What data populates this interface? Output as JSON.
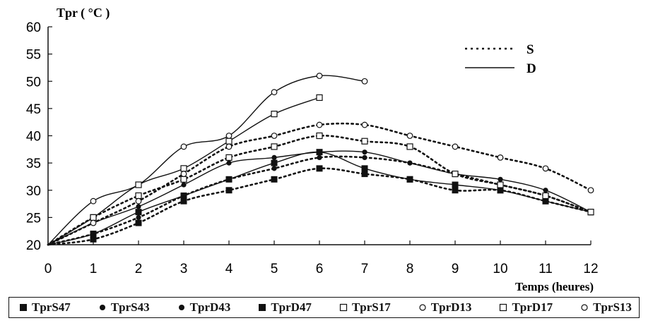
{
  "chart_data": {
    "type": "scatter",
    "ylabel": "Tpr ( °C )",
    "xlabel": "Temps (heures)",
    "xlim": [
      0,
      12
    ],
    "ylim": [
      20,
      60
    ],
    "xticks": [
      0,
      1,
      2,
      3,
      4,
      5,
      6,
      7,
      8,
      9,
      10,
      11,
      12
    ],
    "yticks": [
      20,
      25,
      30,
      35,
      40,
      45,
      50,
      55,
      60
    ],
    "grid": false,
    "line_legend": [
      {
        "label": "S",
        "style": "dotted"
      },
      {
        "label": "D",
        "style": "solid"
      }
    ],
    "series": [
      {
        "name": "TprS47",
        "marker": "square-filled",
        "line": "dotted",
        "points": [
          [
            0,
            20
          ],
          [
            1,
            21
          ],
          [
            2,
            24
          ],
          [
            3,
            28
          ],
          [
            4,
            30
          ],
          [
            5,
            32
          ],
          [
            6,
            34
          ],
          [
            7,
            33
          ],
          [
            8,
            32
          ],
          [
            9,
            30
          ],
          [
            10,
            30
          ],
          [
            11,
            28
          ],
          [
            12,
            26
          ]
        ]
      },
      {
        "name": "TprS43",
        "marker": "circle-filled",
        "line": "dotted",
        "points": [
          [
            0,
            20
          ],
          [
            1,
            22
          ],
          [
            2,
            25
          ],
          [
            3,
            29
          ],
          [
            4,
            32
          ],
          [
            5,
            34
          ],
          [
            6,
            36
          ],
          [
            7,
            36
          ],
          [
            8,
            35
          ],
          [
            9,
            33
          ],
          [
            10,
            31
          ],
          [
            11,
            29
          ],
          [
            12,
            26
          ]
        ]
      },
      {
        "name": "TprD43",
        "marker": "circle-filled",
        "line": "solid",
        "points": [
          [
            0,
            20
          ],
          [
            1,
            24
          ],
          [
            2,
            27
          ],
          [
            3,
            31
          ],
          [
            4,
            35
          ],
          [
            5,
            36
          ],
          [
            6,
            37
          ],
          [
            7,
            37
          ],
          [
            8,
            35
          ],
          [
            9,
            33
          ],
          [
            10,
            32
          ],
          [
            11,
            30
          ],
          [
            12,
            26
          ]
        ]
      },
      {
        "name": "TprD47",
        "marker": "square-filled",
        "line": "solid",
        "points": [
          [
            0,
            20
          ],
          [
            1,
            22
          ],
          [
            2,
            26
          ],
          [
            3,
            29
          ],
          [
            4,
            32
          ],
          [
            5,
            35
          ],
          [
            6,
            37
          ],
          [
            7,
            34
          ],
          [
            8,
            32
          ],
          [
            9,
            31
          ],
          [
            10,
            30
          ],
          [
            11,
            28
          ],
          [
            12,
            26
          ]
        ]
      },
      {
        "name": "TprS17",
        "marker": "square-open",
        "line": "dotted",
        "points": [
          [
            0,
            20
          ],
          [
            1,
            25
          ],
          [
            2,
            29
          ],
          [
            3,
            32
          ],
          [
            4,
            36
          ],
          [
            5,
            38
          ],
          [
            6,
            40
          ],
          [
            7,
            39
          ],
          [
            8,
            38
          ],
          [
            9,
            33
          ],
          [
            10,
            31
          ],
          [
            11,
            29
          ],
          [
            12,
            26
          ]
        ]
      },
      {
        "name": "TprD13",
        "marker": "circle-open",
        "line": "solid",
        "points": [
          [
            0,
            20
          ],
          [
            1,
            28
          ],
          [
            2,
            31
          ],
          [
            3,
            38
          ],
          [
            4,
            40
          ],
          [
            5,
            48
          ],
          [
            6,
            51
          ],
          [
            7,
            50
          ]
        ]
      },
      {
        "name": "TprD17",
        "marker": "square-open",
        "line": "solid",
        "points": [
          [
            0,
            20
          ],
          [
            1,
            25
          ],
          [
            2,
            31
          ],
          [
            3,
            34
          ],
          [
            4,
            39
          ],
          [
            5,
            44
          ],
          [
            6,
            47
          ]
        ]
      },
      {
        "name": "TprS13",
        "marker": "circle-open",
        "line": "dotted",
        "points": [
          [
            0,
            20
          ],
          [
            1,
            24
          ],
          [
            2,
            28
          ],
          [
            3,
            33
          ],
          [
            4,
            38
          ],
          [
            5,
            40
          ],
          [
            6,
            42
          ],
          [
            7,
            42
          ],
          [
            8,
            40
          ],
          [
            9,
            38
          ],
          [
            10,
            36
          ],
          [
            11,
            34
          ],
          [
            12,
            30
          ]
        ]
      }
    ]
  }
}
